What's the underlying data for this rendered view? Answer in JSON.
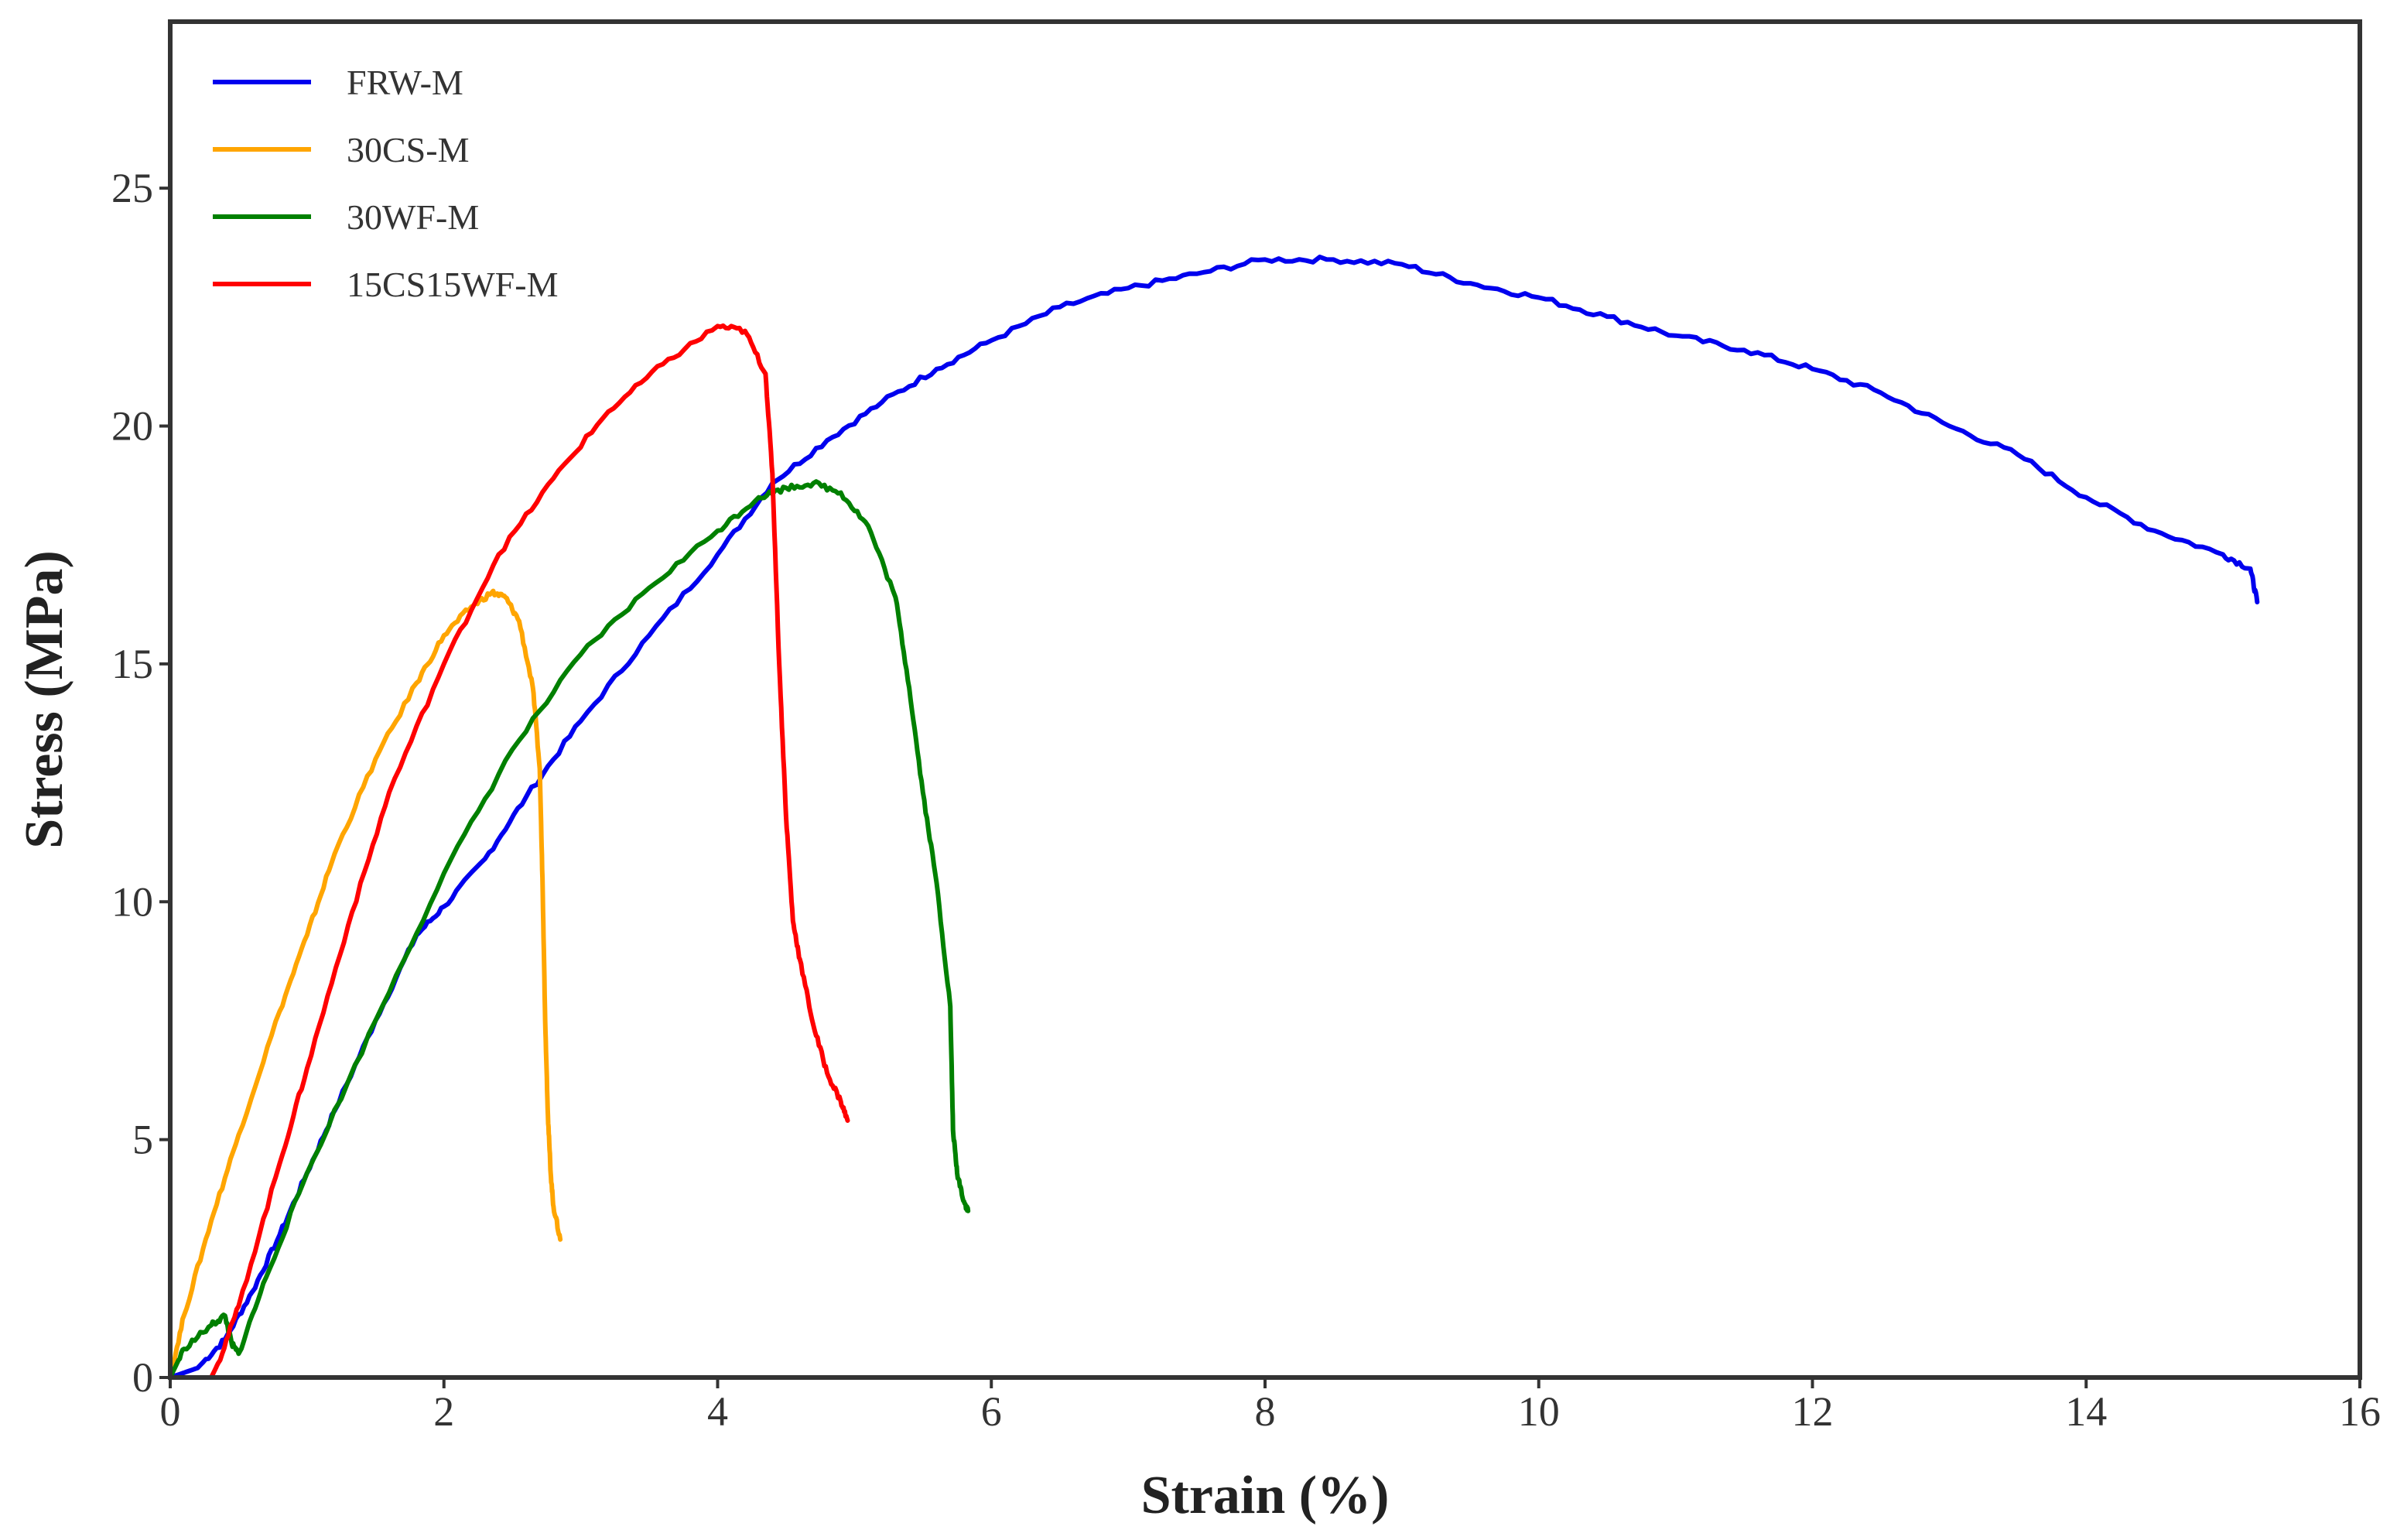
{
  "chart_data": {
    "type": "line",
    "title": "",
    "xlabel": "Strain (%)",
    "ylabel": "Stress (MPa)",
    "xlim": [
      0,
      16
    ],
    "ylim": [
      0,
      28.5
    ],
    "xticks": [
      0,
      2,
      4,
      6,
      8,
      10,
      12,
      14,
      16
    ],
    "yticks": [
      0,
      5,
      10,
      15,
      20,
      25
    ],
    "grid": false,
    "legend_position": "top-left",
    "series": [
      {
        "name": "FRW-M",
        "color": "#0000ee",
        "points": [
          [
            0,
            0
          ],
          [
            0.2,
            0.2
          ],
          [
            0.4,
            0.8
          ],
          [
            0.6,
            1.8
          ],
          [
            0.8,
            3.0
          ],
          [
            1.0,
            4.3
          ],
          [
            1.2,
            5.6
          ],
          [
            1.5,
            7.5
          ],
          [
            1.8,
            9.3
          ],
          [
            2.0,
            9.9
          ],
          [
            2.3,
            10.9
          ],
          [
            2.6,
            12.2
          ],
          [
            3.0,
            13.8
          ],
          [
            3.5,
            15.6
          ],
          [
            4.0,
            17.3
          ],
          [
            4.4,
            18.8
          ],
          [
            4.8,
            19.7
          ],
          [
            5.2,
            20.5
          ],
          [
            5.6,
            21.2
          ],
          [
            6.0,
            21.8
          ],
          [
            6.5,
            22.5
          ],
          [
            7.0,
            22.9
          ],
          [
            7.5,
            23.2
          ],
          [
            8.0,
            23.5
          ],
          [
            8.5,
            23.5
          ],
          [
            9.0,
            23.4
          ],
          [
            9.5,
            23.0
          ],
          [
            10.0,
            22.7
          ],
          [
            10.5,
            22.3
          ],
          [
            11.0,
            21.9
          ],
          [
            11.5,
            21.6
          ],
          [
            12.0,
            21.2
          ],
          [
            12.5,
            20.7
          ],
          [
            13.0,
            20.0
          ],
          [
            13.5,
            19.4
          ],
          [
            14.0,
            18.5
          ],
          [
            14.5,
            17.8
          ],
          [
            15.0,
            17.3
          ],
          [
            15.2,
            17.0
          ],
          [
            15.25,
            16.3
          ]
        ]
      },
      {
        "name": "30CS-M",
        "color": "#ffa500",
        "points": [
          [
            0,
            0
          ],
          [
            0.1,
            1.3
          ],
          [
            0.3,
            3.3
          ],
          [
            0.5,
            5.1
          ],
          [
            0.8,
            7.7
          ],
          [
            1.0,
            9.3
          ],
          [
            1.2,
            11.0
          ],
          [
            1.5,
            13.0
          ],
          [
            1.8,
            14.6
          ],
          [
            2.0,
            15.6
          ],
          [
            2.2,
            16.2
          ],
          [
            2.35,
            16.5
          ],
          [
            2.45,
            16.4
          ],
          [
            2.55,
            15.9
          ],
          [
            2.65,
            14.5
          ],
          [
            2.7,
            12.8
          ],
          [
            2.72,
            10.5
          ],
          [
            2.74,
            7.5
          ],
          [
            2.76,
            5.5
          ],
          [
            2.78,
            4.3
          ],
          [
            2.8,
            3.6
          ],
          [
            2.85,
            2.9
          ]
        ]
      },
      {
        "name": "30WF-M",
        "color": "#008000",
        "points": [
          [
            0,
            0
          ],
          [
            0.1,
            0.6
          ],
          [
            0.3,
            1.1
          ],
          [
            0.4,
            1.3
          ],
          [
            0.45,
            0.7
          ],
          [
            0.5,
            0.5
          ],
          [
            0.7,
            2.1
          ],
          [
            1.0,
            4.3
          ],
          [
            1.5,
            7.5
          ],
          [
            2.0,
            10.6
          ],
          [
            2.5,
            13.2
          ],
          [
            3.0,
            15.2
          ],
          [
            3.5,
            16.6
          ],
          [
            4.0,
            17.8
          ],
          [
            4.3,
            18.5
          ],
          [
            4.5,
            18.7
          ],
          [
            4.7,
            18.8
          ],
          [
            4.9,
            18.6
          ],
          [
            5.1,
            17.9
          ],
          [
            5.3,
            16.4
          ],
          [
            5.4,
            14.5
          ],
          [
            5.5,
            12.3
          ],
          [
            5.6,
            10.4
          ],
          [
            5.7,
            7.8
          ],
          [
            5.72,
            5.2
          ],
          [
            5.75,
            4.3
          ],
          [
            5.8,
            3.7
          ],
          [
            5.83,
            3.5
          ]
        ]
      },
      {
        "name": "15CS15WF-M",
        "color": "#ff0000",
        "points": [
          [
            0,
            0
          ],
          [
            0.3,
            0
          ],
          [
            0.35,
            0.3
          ],
          [
            0.5,
            1.5
          ],
          [
            0.8,
            4.5
          ],
          [
            1.0,
            6.5
          ],
          [
            1.3,
            9.5
          ],
          [
            1.6,
            12.3
          ],
          [
            2.0,
            15.0
          ],
          [
            2.4,
            17.3
          ],
          [
            2.8,
            18.9
          ],
          [
            3.2,
            20.3
          ],
          [
            3.6,
            21.3
          ],
          [
            4.0,
            22.1
          ],
          [
            4.2,
            22.0
          ],
          [
            4.35,
            21.1
          ],
          [
            4.4,
            19.0
          ],
          [
            4.45,
            15.0
          ],
          [
            4.5,
            11.8
          ],
          [
            4.55,
            9.6
          ],
          [
            4.6,
            8.8
          ],
          [
            4.7,
            7.4
          ],
          [
            4.8,
            6.4
          ],
          [
            4.9,
            5.8
          ],
          [
            4.95,
            5.4
          ]
        ]
      }
    ]
  }
}
